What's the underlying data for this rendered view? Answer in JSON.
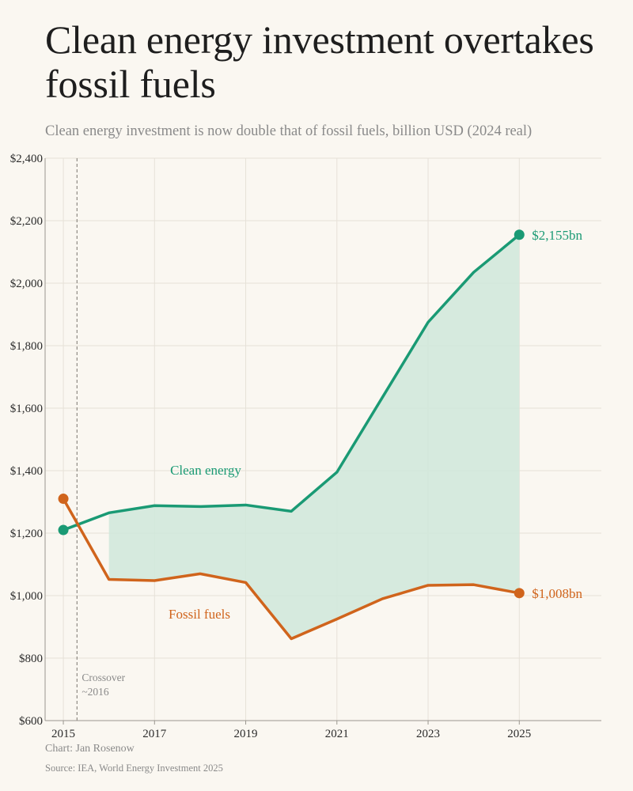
{
  "header": {
    "title": "Clean energy investment overtakes fossil fuels",
    "subtitle": "Clean energy investment is now double that of fossil fuels, billion USD (2024 real)"
  },
  "footer": {
    "chart_credit": "Chart: Jan Rosenow",
    "source": "Source: IEA, World Energy Investment 2025"
  },
  "chart_data": {
    "type": "line",
    "title": "Clean energy investment overtakes fossil fuels",
    "subtitle": "Clean energy investment is now double that of fossil fuels, billion USD (2024 real)",
    "x": [
      2015,
      2016,
      2017,
      2018,
      2019,
      2020,
      2021,
      2022,
      2023,
      2024,
      2025
    ],
    "xlim": [
      2014.6,
      2026.8
    ],
    "xticks": [
      2015,
      2017,
      2019,
      2021,
      2023,
      2025
    ],
    "xtick_labels": [
      "2015",
      "2017",
      "2019",
      "2021",
      "2023",
      "2025"
    ],
    "ylim": [
      600,
      2400
    ],
    "yticks": [
      600,
      800,
      1000,
      1200,
      1400,
      1600,
      1800,
      2000,
      2200,
      2400
    ],
    "ytick_labels": [
      "$600",
      "$800",
      "$1,000",
      "$1,200",
      "$1,400",
      "$1,600",
      "$1,800",
      "$2,000",
      "$2,200",
      "$2,400"
    ],
    "grid": true,
    "series": [
      {
        "name": "Clean energy",
        "color": "#1a9a74",
        "values": [
          1210,
          1265,
          1288,
          1285,
          1290,
          1270,
          1395,
          1635,
          1875,
          2035,
          2155
        ],
        "end_label": "$2,155bn"
      },
      {
        "name": "Fossil fuels",
        "color": "#d0641c",
        "values": [
          1310,
          1052,
          1048,
          1070,
          1042,
          862,
          925,
          990,
          1033,
          1035,
          1008
        ],
        "end_label": "$1,008bn"
      }
    ],
    "gap_fill": {
      "from_year": 2016,
      "to_year": 2025,
      "color": "#cfe7da"
    },
    "annotations": [
      {
        "text_lines": [
          "Crossover",
          "~2016"
        ],
        "x": 2015.3,
        "style": "dashed-vertical"
      }
    ]
  }
}
